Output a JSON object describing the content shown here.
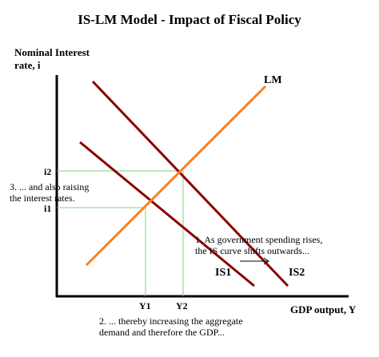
{
  "title": "IS-LM Model - Impact of Fiscal Policy",
  "y_axis_label": [
    "Nominal Interest",
    "rate, i"
  ],
  "x_axis_label": "GDP output, Y",
  "curves": {
    "lm": "LM",
    "is1": "IS1",
    "is2": "IS2"
  },
  "ticks": {
    "i1": "i1",
    "i2": "i2",
    "y1": "Y1",
    "y2": "Y2"
  },
  "annotations": {
    "note1": [
      "1. As government spending rises,",
      "the IS curve shifts outwards..."
    ],
    "note2": [
      "2. ... thereby increasing the aggregate",
      "demand and therefore the GDP..."
    ],
    "note3": [
      "3. ... and also raising",
      "the interest rates."
    ]
  },
  "colors": {
    "lm": "#F5821F",
    "is": "#8B0000",
    "guide": "#7FD17F",
    "axis": "#000000",
    "arrow": "#000000"
  }
}
